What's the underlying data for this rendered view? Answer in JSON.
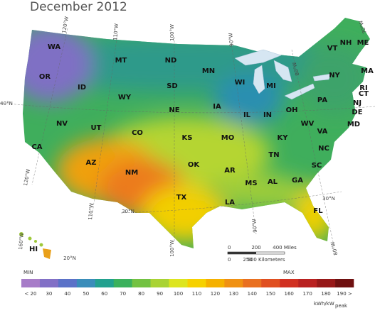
{
  "title": "December 2012",
  "states": [
    "WA",
    "OR",
    "ID",
    "MT",
    "ND",
    "MN",
    "SD",
    "WY",
    "NE",
    "IA",
    "WI",
    "MI",
    "NV",
    "UT",
    "CO",
    "KS",
    "MO",
    "IL",
    "IN",
    "OH",
    "PA",
    "NY",
    "VT",
    "NH",
    "ME",
    "MA",
    "RI",
    "CT",
    "NJ",
    "DE",
    "MD",
    "WV",
    "VA",
    "KY",
    "CA",
    "AZ",
    "NM",
    "OK",
    "AR",
    "TN",
    "NC",
    "SC",
    "GA",
    "AL",
    "MS",
    "LA",
    "TX",
    "FL",
    "HI"
  ],
  "graticule": [
    "120°W",
    "110°W",
    "100°W",
    "90°W",
    "80°W",
    "70°W",
    "40°N",
    "30°N",
    "30°N",
    "120°W",
    "110°W",
    "100°W",
    "90°W",
    "80°W",
    "160°W",
    "20°N"
  ],
  "scale_bar": {
    "miles": [
      "0",
      "200",
      "400 Miles"
    ],
    "kilometers": [
      "0",
      "250",
      "500 Kilometers"
    ]
  },
  "legend": {
    "min_label": "MIN",
    "max_label": "MAX",
    "ticks": [
      {
        "value": 20,
        "label": "< 20"
      },
      30,
      40,
      50,
      60,
      70,
      80,
      90,
      100,
      110,
      120,
      130,
      140,
      150,
      160,
      170,
      180,
      {
        "value": 190,
        "label": "190 >"
      }
    ],
    "colors": [
      "#a77cc8",
      "#8270c6",
      "#5b72c8",
      "#3a8dba",
      "#22a18f",
      "#3bb15c",
      "#73c242",
      "#a9d334",
      "#dde51f",
      "#f6d100",
      "#f5b100",
      "#f09112",
      "#e97020",
      "#e04f20",
      "#d13021",
      "#b92120",
      "#971818",
      "#6f1010"
    ],
    "unit": "kWh/kW",
    "unit_sub": "peak"
  }
}
